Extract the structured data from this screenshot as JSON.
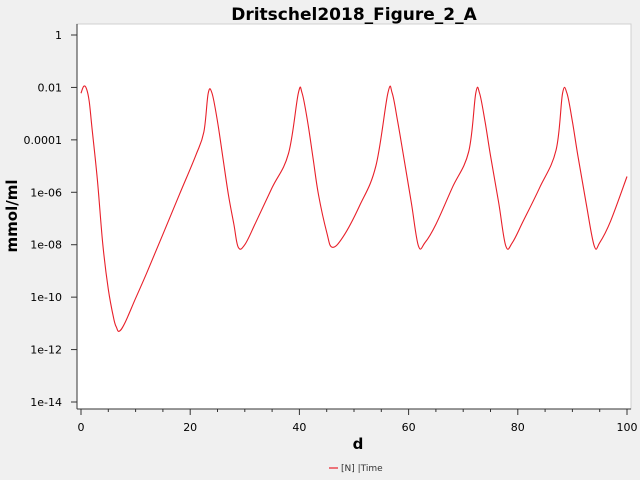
{
  "chart_data": {
    "type": "line",
    "title": "Dritschel2018_Figure_2_A",
    "xlabel": "d",
    "ylabel": "mmol/ml",
    "xlim": [
      0,
      100
    ],
    "ylim": [
      1e-14,
      1
    ],
    "yscale": "log",
    "grid": false,
    "legend_position": "bottom-center",
    "x_ticks": [
      0,
      20,
      40,
      60,
      80,
      100
    ],
    "x_tick_labels": [
      "0",
      "20",
      "40",
      "60",
      "80",
      "100"
    ],
    "y_ticks": [
      1,
      0.01,
      0.0001,
      1e-06,
      1e-08,
      1e-10,
      1e-12,
      1e-14
    ],
    "y_tick_labels": [
      "1",
      "0.01",
      "0.0001",
      "1e-06",
      "1e-08",
      "1e-10",
      "1e-12",
      "1e-14"
    ],
    "series": [
      {
        "name": "[N] |Time",
        "color": "#e8202a",
        "x": [
          0,
          0.5,
          1,
          1.5,
          2,
          3,
          4,
          5,
          6,
          6.5,
          7,
          8,
          10,
          12,
          15,
          18,
          21,
          22.5,
          23.3,
          24,
          25,
          26,
          27,
          28,
          28.8,
          30,
          32,
          35,
          38,
          39.8,
          40.5,
          41.5,
          42.5,
          43.5,
          45,
          46,
          48,
          51,
          54,
          56.2,
          57,
          58,
          59,
          60.5,
          61.8,
          63,
          65,
          68,
          71,
          72.3,
          73,
          74,
          75,
          76.5,
          77.8,
          79,
          81,
          84,
          87,
          88.2,
          89,
          90,
          91,
          92.5,
          94,
          95,
          97,
          100
        ],
        "y": [
          0.006,
          0.011,
          0.009,
          0.003,
          0.0003,
          3e-06,
          1e-08,
          2e-10,
          1.5e-11,
          7e-12,
          5e-12,
          1e-11,
          9e-11,
          8e-10,
          2.5e-08,
          8e-07,
          2.5e-05,
          0.0002,
          0.006,
          0.006,
          0.0005,
          2e-05,
          8e-07,
          6e-08,
          8e-09,
          1e-08,
          7e-08,
          1.5e-06,
          3e-05,
          0.006,
          0.006,
          0.0005,
          2e-05,
          8e-07,
          3e-08,
          8e-09,
          2e-08,
          3e-07,
          1e-05,
          0.006,
          0.006,
          0.0005,
          3e-05,
          4e-07,
          9e-09,
          1.2e-08,
          6e-08,
          1.5e-06,
          3.5e-05,
          0.006,
          0.006,
          0.0005,
          2.5e-05,
          4e-07,
          9e-09,
          1.2e-08,
          8e-08,
          1.5e-06,
          4e-05,
          0.006,
          0.006,
          0.0005,
          2.5e-05,
          4e-07,
          9e-09,
          1.2e-08,
          8e-08,
          4e-06
        ]
      }
    ]
  }
}
